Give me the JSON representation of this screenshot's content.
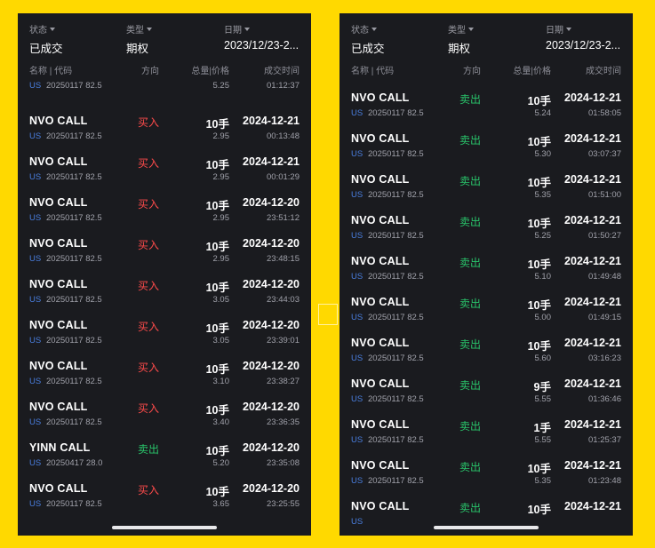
{
  "filters": {
    "status_label": "状态",
    "status_value": "已成交",
    "type_label": "类型",
    "type_value": "期权",
    "date_label": "日期",
    "date_value": "2023/12/23-2..."
  },
  "columns": {
    "name": "名称 | 代码",
    "direction": "方向",
    "qty_price": "总量|价格",
    "time": "成交时间"
  },
  "panel1": {
    "partial_row": {
      "market": "US",
      "code": "20250117 82.5",
      "price": "5.25",
      "time": "01:12:37"
    },
    "rows": [
      {
        "name": "NVO CALL",
        "market": "US",
        "code": "20250117 82.5",
        "direction": "买入",
        "side": "buy",
        "qty": "10手",
        "price": "2.95",
        "date": "2024-12-21",
        "time": "00:13:48"
      },
      {
        "name": "NVO CALL",
        "market": "US",
        "code": "20250117 82.5",
        "direction": "买入",
        "side": "buy",
        "qty": "10手",
        "price": "2.95",
        "date": "2024-12-21",
        "time": "00:01:29"
      },
      {
        "name": "NVO CALL",
        "market": "US",
        "code": "20250117 82.5",
        "direction": "买入",
        "side": "buy",
        "qty": "10手",
        "price": "2.95",
        "date": "2024-12-20",
        "time": "23:51:12"
      },
      {
        "name": "NVO CALL",
        "market": "US",
        "code": "20250117 82.5",
        "direction": "买入",
        "side": "buy",
        "qty": "10手",
        "price": "2.95",
        "date": "2024-12-20",
        "time": "23:48:15"
      },
      {
        "name": "NVO CALL",
        "market": "US",
        "code": "20250117 82.5",
        "direction": "买入",
        "side": "buy",
        "qty": "10手",
        "price": "3.05",
        "date": "2024-12-20",
        "time": "23:44:03"
      },
      {
        "name": "NVO CALL",
        "market": "US",
        "code": "20250117 82.5",
        "direction": "买入",
        "side": "buy",
        "qty": "10手",
        "price": "3.05",
        "date": "2024-12-20",
        "time": "23:39:01"
      },
      {
        "name": "NVO CALL",
        "market": "US",
        "code": "20250117 82.5",
        "direction": "买入",
        "side": "buy",
        "qty": "10手",
        "price": "3.10",
        "date": "2024-12-20",
        "time": "23:38:27"
      },
      {
        "name": "NVO CALL",
        "market": "US",
        "code": "20250117 82.5",
        "direction": "买入",
        "side": "buy",
        "qty": "10手",
        "price": "3.40",
        "date": "2024-12-20",
        "time": "23:36:35"
      },
      {
        "name": "YINN CALL",
        "market": "US",
        "code": "20250417 28.0",
        "direction": "卖出",
        "side": "sell",
        "qty": "10手",
        "price": "5.20",
        "date": "2024-12-20",
        "time": "23:35:08"
      },
      {
        "name": "NVO CALL",
        "market": "US",
        "code": "20250117 82.5",
        "direction": "买入",
        "side": "buy",
        "qty": "10手",
        "price": "3.65",
        "date": "2024-12-20",
        "time": "23:25:55"
      }
    ]
  },
  "panel2": {
    "rows": [
      {
        "name": "NVO CALL",
        "market": "US",
        "code": "20250117 82.5",
        "direction": "卖出",
        "side": "sell",
        "qty": "10手",
        "price": "5.24",
        "date": "2024-12-21",
        "time": "01:58:05"
      },
      {
        "name": "NVO CALL",
        "market": "US",
        "code": "20250117 82.5",
        "direction": "卖出",
        "side": "sell",
        "qty": "10手",
        "price": "5.30",
        "date": "2024-12-21",
        "time": "03:07:37"
      },
      {
        "name": "NVO CALL",
        "market": "US",
        "code": "20250117 82.5",
        "direction": "卖出",
        "side": "sell",
        "qty": "10手",
        "price": "5.35",
        "date": "2024-12-21",
        "time": "01:51:00"
      },
      {
        "name": "NVO CALL",
        "market": "US",
        "code": "20250117 82.5",
        "direction": "卖出",
        "side": "sell",
        "qty": "10手",
        "price": "5.25",
        "date": "2024-12-21",
        "time": "01:50:27"
      },
      {
        "name": "NVO CALL",
        "market": "US",
        "code": "20250117 82.5",
        "direction": "卖出",
        "side": "sell",
        "qty": "10手",
        "price": "5.10",
        "date": "2024-12-21",
        "time": "01:49:48"
      },
      {
        "name": "NVO CALL",
        "market": "US",
        "code": "20250117 82.5",
        "direction": "卖出",
        "side": "sell",
        "qty": "10手",
        "price": "5.00",
        "date": "2024-12-21",
        "time": "01:49:15"
      },
      {
        "name": "NVO CALL",
        "market": "US",
        "code": "20250117 82.5",
        "direction": "卖出",
        "side": "sell",
        "qty": "10手",
        "price": "5.60",
        "date": "2024-12-21",
        "time": "03:16:23"
      },
      {
        "name": "NVO CALL",
        "market": "US",
        "code": "20250117 82.5",
        "direction": "卖出",
        "side": "sell",
        "qty": "9手",
        "price": "5.55",
        "date": "2024-12-21",
        "time": "01:36:46"
      },
      {
        "name": "NVO CALL",
        "market": "US",
        "code": "20250117 82.5",
        "direction": "卖出",
        "side": "sell",
        "qty": "1手",
        "price": "5.55",
        "date": "2024-12-21",
        "time": "01:25:37"
      },
      {
        "name": "NVO CALL",
        "market": "US",
        "code": "20250117 82.5",
        "direction": "卖出",
        "side": "sell",
        "qty": "10手",
        "price": "5.35",
        "date": "2024-12-21",
        "time": "01:23:48"
      },
      {
        "name": "NVO CALL",
        "market": "US",
        "code": "",
        "direction": "卖出",
        "side": "sell",
        "qty": "10手",
        "price": "",
        "date": "2024-12-21",
        "time": ""
      }
    ]
  },
  "colors": {
    "buy": "#ff4b4b",
    "sell": "#29c46a",
    "market": "#4a7fe0",
    "background": "#ffd900",
    "panel": "#1a1b1f"
  }
}
